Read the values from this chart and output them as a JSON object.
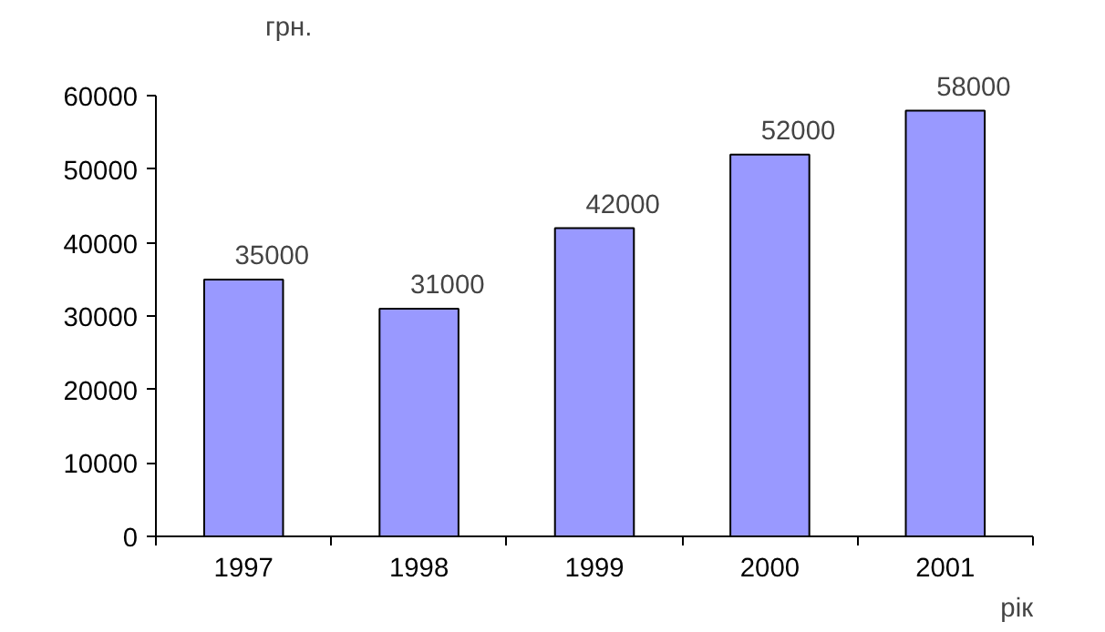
{
  "chart_data": {
    "type": "bar",
    "categories": [
      "1997",
      "1998",
      "1999",
      "2000",
      "2001"
    ],
    "values": [
      35000,
      31000,
      42000,
      52000,
      58000
    ],
    "color": "#9999ff",
    "ylim": [
      0,
      60000
    ],
    "yticks": [
      0,
      10000,
      20000,
      30000,
      40000,
      50000,
      60000
    ],
    "ylabel": "грн.",
    "xlabel": "рік",
    "data_labels": true,
    "grid": false
  }
}
